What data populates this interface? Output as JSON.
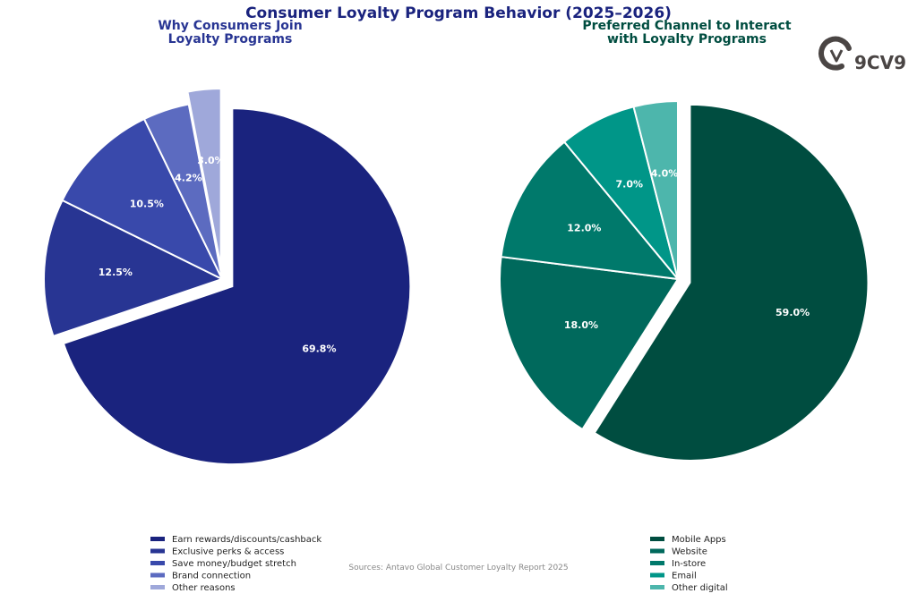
{
  "title": "Consumer Loyalty Program Behavior (2025–2026)",
  "title_color": "#1a237e",
  "source": "Sources: Antavo Global Customer Loyalty Report 2025",
  "logo": {
    "text": "9CV9",
    "icon": "9cv9-logo-icon",
    "color": "#4a4544"
  },
  "chart_data": [
    {
      "type": "pie",
      "title": "Why Consumers Join\nLoyalty Programs",
      "title_color": "#283593",
      "categories": [
        "Earn rewards/discounts/cashback",
        "Exclusive perks & access",
        "Save money/budget stretch",
        "Brand connection",
        "Other reasons"
      ],
      "values": [
        69.8,
        12.5,
        10.5,
        4.2,
        3.0
      ],
      "labels": [
        "69.8%",
        "12.5%",
        "10.5%",
        "4.2%",
        "3.0%"
      ],
      "colors": [
        "#1a237e",
        "#283593",
        "#3949ab",
        "#5c6bc0",
        "#9fa8da"
      ],
      "exploded": [
        1,
        0,
        0,
        0,
        1
      ],
      "legend": "bottom"
    },
    {
      "type": "pie",
      "title": "Preferred Channel to Interact\nwith Loyalty Programs",
      "title_color": "#004d40",
      "categories": [
        "Mobile Apps",
        "Website",
        "In-store",
        "Email",
        "Other digital"
      ],
      "values": [
        59.0,
        18.0,
        12.0,
        7.0,
        4.0
      ],
      "labels": [
        "59.0%",
        "18.0%",
        "12.0%",
        "7.0%",
        "4.0%"
      ],
      "colors": [
        "#004d40",
        "#00695c",
        "#00796b",
        "#009688",
        "#4db6ac"
      ],
      "exploded": [
        1,
        0,
        0,
        0,
        0
      ],
      "legend": "bottom"
    }
  ]
}
